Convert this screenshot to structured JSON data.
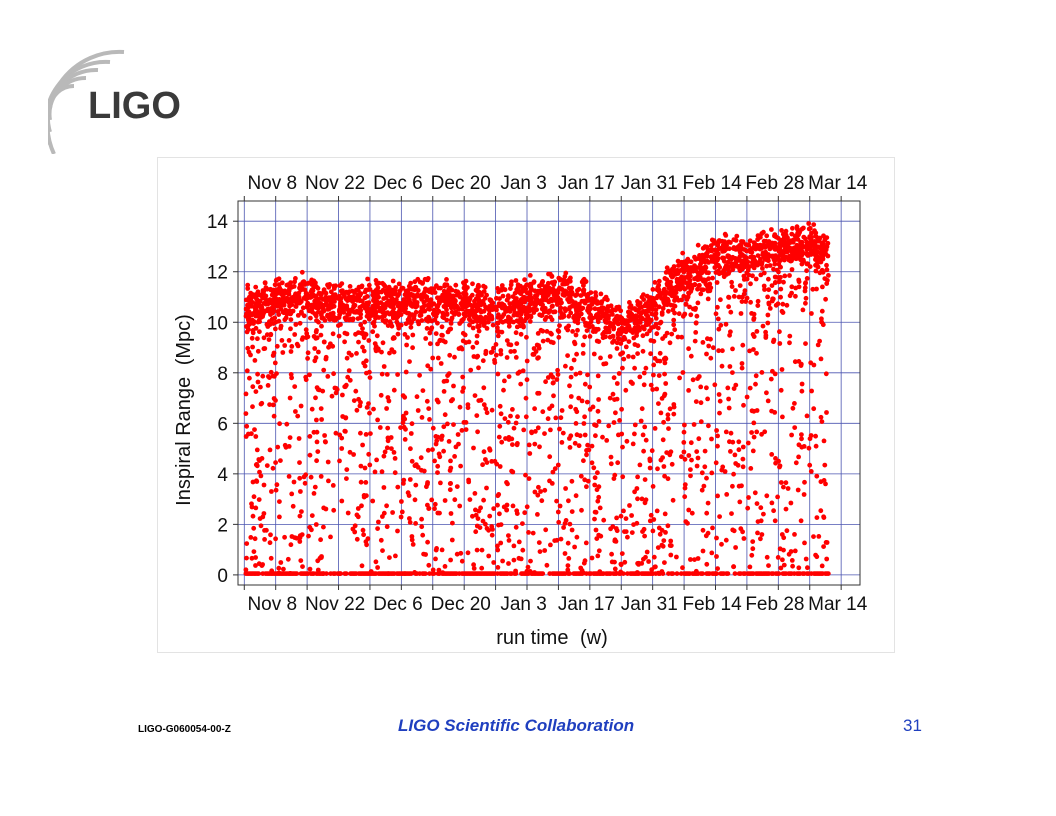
{
  "logo": {
    "text": "LIGO"
  },
  "footer": {
    "doc_id": "LIGO-G060054-00-Z",
    "collaboration": "LIGO Scientific Collaboration",
    "page_number": "31"
  },
  "chart_data": {
    "type": "scatter",
    "title": "",
    "xlabel": "run time",
    "xlabel_unit": "(w)",
    "ylabel": "Inspiral Range",
    "ylabel_unit": "(Mpc)",
    "x_tick_labels": [
      "Nov 8",
      "Nov 22",
      "Dec 6",
      "Dec 20",
      "Jan 3",
      "Jan 17",
      "Jan 31",
      "Feb 14",
      "Feb 28",
      "Mar 14"
    ],
    "x_tick_weeks": [
      0,
      2,
      4,
      6,
      8,
      10,
      12,
      14,
      16,
      18
    ],
    "xlim": [
      -0.2,
      19.6
    ],
    "y_ticks": [
      0,
      2,
      4,
      6,
      8,
      10,
      12,
      14
    ],
    "ylim": [
      -0.4,
      14.8
    ],
    "grid": true,
    "marker_color": "#ff0000",
    "grid_color": "#4b55b0",
    "band_profile": {
      "weeks": [
        0.0,
        1.0,
        2.0,
        3.0,
        4.0,
        5.0,
        6.0,
        7.0,
        8.0,
        9.0,
        10.0,
        11.0,
        12.0,
        13.0,
        14.0,
        15.0,
        16.0,
        17.0,
        18.0,
        18.6
      ],
      "typical_range_mpc": [
        10.5,
        10.9,
        11.1,
        10.6,
        10.8,
        10.7,
        10.9,
        10.8,
        10.6,
        10.9,
        11.2,
        10.8,
        9.8,
        10.6,
        11.9,
        12.7,
        12.6,
        12.9,
        13.0,
        12.8
      ]
    }
  }
}
